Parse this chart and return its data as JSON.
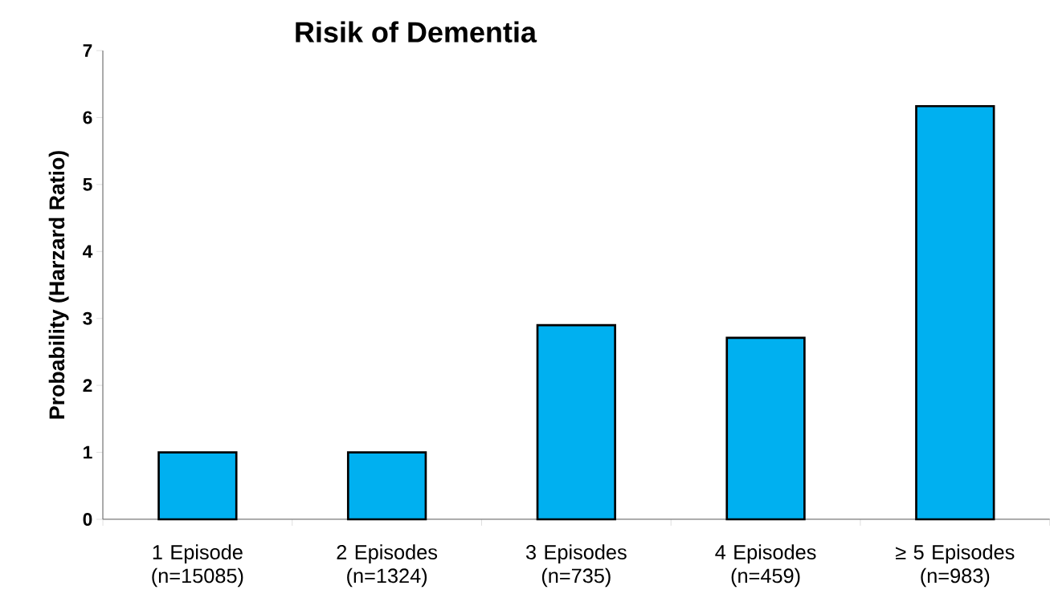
{
  "chart_data": {
    "type": "bar",
    "title": "Risik of Dementia",
    "ylabel": "Probability (Harzard Ratio)",
    "categories": [
      "1 Episode (n=15085)",
      "2 Episodes (n=1324)",
      "3 Episodes (n=735)",
      "4 Episodes (n=459)",
      "≥ 5 Episodes (n=983)"
    ],
    "values": [
      1.0,
      1.0,
      2.9,
      2.71,
      6.17
    ],
    "color": "#00b0f0",
    "ylim": [
      0,
      7
    ],
    "yticks": [
      0,
      1,
      2,
      3,
      4,
      5,
      6,
      7
    ],
    "grid": false
  }
}
